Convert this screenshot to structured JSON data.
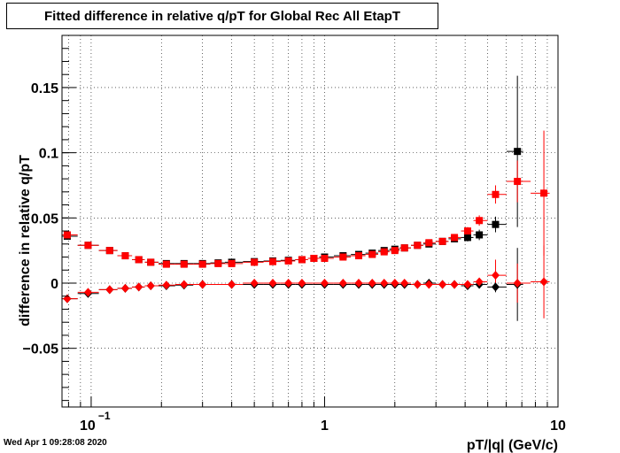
{
  "title": "Fitted difference in relative q/pT for Global Rec All EtapT",
  "timestamp": "Wed Apr  1 09:28:08 2020",
  "chart_data": {
    "type": "scatter",
    "title": "Fitted difference in relative q/pT for Global Rec All EtapT",
    "xlabel": "pT/|q| (GeV/c)",
    "ylabel": "difference in relative q/pT",
    "xscale": "log",
    "xlim": [
      0.075,
      10
    ],
    "ylim": [
      -0.095,
      0.19
    ],
    "x_ticks": [
      {
        "value": 0.1,
        "label": "10",
        "sup": "−1"
      },
      {
        "value": 1,
        "label": "1"
      },
      {
        "value": 10,
        "label": "10"
      }
    ],
    "y_ticks": [
      {
        "value": -0.05,
        "label": "−0.05"
      },
      {
        "value": 0,
        "label": "0"
      },
      {
        "value": 0.05,
        "label": "0.05"
      },
      {
        "value": 0.1,
        "label": "0.1"
      },
      {
        "value": 0.15,
        "label": "0.15"
      }
    ],
    "grid": true,
    "colors": {
      "black": "#000000",
      "red": "#ff0000"
    },
    "series": [
      {
        "color": "#000000",
        "marker": "square",
        "points": [
          [
            0.079,
            0.036
          ],
          [
            0.097,
            0.029
          ],
          [
            0.12,
            0.025
          ],
          [
            0.14,
            0.021
          ],
          [
            0.16,
            0.018
          ],
          [
            0.18,
            0.016
          ],
          [
            0.21,
            0.015
          ],
          [
            0.25,
            0.015
          ],
          [
            0.3,
            0.015
          ],
          [
            0.35,
            0.0155
          ],
          [
            0.4,
            0.016
          ],
          [
            0.5,
            0.0165
          ],
          [
            0.6,
            0.017
          ],
          [
            0.7,
            0.0175
          ],
          [
            0.8,
            0.018
          ],
          [
            0.9,
            0.019
          ],
          [
            1.0,
            0.02
          ],
          [
            1.2,
            0.021
          ],
          [
            1.4,
            0.022
          ],
          [
            1.6,
            0.023
          ],
          [
            1.8,
            0.025
          ],
          [
            2.0,
            0.026
          ],
          [
            2.2,
            0.027
          ],
          [
            2.5,
            0.029
          ],
          [
            2.8,
            0.03
          ],
          [
            3.2,
            0.032
          ],
          [
            3.6,
            0.034
          ],
          [
            4.1,
            0.035
          ],
          [
            4.6,
            0.037
          ],
          [
            5.4,
            0.045
          ],
          [
            6.7,
            0.101
          ]
        ],
        "errors": [
          0,
          0,
          0,
          0,
          0,
          0,
          0,
          0,
          0,
          0,
          0,
          0,
          0,
          0,
          0,
          0,
          0,
          0,
          0,
          0,
          0,
          0,
          0,
          0,
          0,
          0.001,
          0.002,
          0.003,
          0.004,
          0.006,
          0.058
        ]
      },
      {
        "color": "#ff0000",
        "marker": "square",
        "points": [
          [
            0.079,
            0.037
          ],
          [
            0.097,
            0.029
          ],
          [
            0.12,
            0.025
          ],
          [
            0.14,
            0.021
          ],
          [
            0.16,
            0.018
          ],
          [
            0.18,
            0.016
          ],
          [
            0.21,
            0.0145
          ],
          [
            0.25,
            0.0145
          ],
          [
            0.3,
            0.0145
          ],
          [
            0.35,
            0.015
          ],
          [
            0.4,
            0.015
          ],
          [
            0.5,
            0.016
          ],
          [
            0.6,
            0.0165
          ],
          [
            0.7,
            0.017
          ],
          [
            0.8,
            0.018
          ],
          [
            0.9,
            0.019
          ],
          [
            1.0,
            0.019
          ],
          [
            1.2,
            0.02
          ],
          [
            1.4,
            0.021
          ],
          [
            1.6,
            0.022
          ],
          [
            1.8,
            0.024
          ],
          [
            2.0,
            0.025
          ],
          [
            2.2,
            0.027
          ],
          [
            2.5,
            0.029
          ],
          [
            2.8,
            0.031
          ],
          [
            3.2,
            0.032
          ],
          [
            3.6,
            0.035
          ],
          [
            4.1,
            0.04
          ],
          [
            4.6,
            0.048
          ],
          [
            5.4,
            0.068
          ],
          [
            6.7,
            0.078
          ],
          [
            8.7,
            0.069
          ]
        ],
        "errors": [
          0,
          0,
          0,
          0,
          0,
          0,
          0,
          0,
          0,
          0,
          0,
          0,
          0,
          0,
          0,
          0,
          0,
          0,
          0,
          0,
          0,
          0,
          0,
          0,
          0,
          0.001,
          0.002,
          0.003,
          0.004,
          0.007,
          0.016,
          0.048
        ]
      },
      {
        "color": "#000000",
        "marker": "diamond",
        "points": [
          [
            0.079,
            -0.012
          ],
          [
            0.097,
            -0.008
          ],
          [
            0.12,
            -0.005
          ],
          [
            0.14,
            -0.004
          ],
          [
            0.16,
            -0.003
          ],
          [
            0.18,
            -0.002
          ],
          [
            0.21,
            -0.002
          ],
          [
            0.25,
            -0.0015
          ],
          [
            0.3,
            -0.001
          ],
          [
            0.4,
            -0.001
          ],
          [
            0.5,
            -0.001
          ],
          [
            0.6,
            -0.001
          ],
          [
            0.7,
            -0.001
          ],
          [
            0.8,
            -0.001
          ],
          [
            1.0,
            -0.001
          ],
          [
            1.2,
            -0.001
          ],
          [
            1.4,
            -0.001
          ],
          [
            1.6,
            -0.001
          ],
          [
            1.8,
            -0.001
          ],
          [
            2.0,
            -0.001
          ],
          [
            2.2,
            -0.001
          ],
          [
            2.5,
            -0.001
          ],
          [
            2.8,
            0.0
          ],
          [
            3.2,
            -0.001
          ],
          [
            3.6,
            -0.001
          ],
          [
            4.1,
            -0.002
          ],
          [
            4.6,
            -0.001
          ],
          [
            5.4,
            -0.003
          ],
          [
            6.7,
            -0.001
          ]
        ],
        "errors": [
          0,
          0,
          0,
          0,
          0,
          0,
          0,
          0,
          0,
          0,
          0,
          0,
          0,
          0,
          0,
          0,
          0,
          0,
          0,
          0,
          0,
          0,
          0,
          0,
          0,
          0.001,
          0.002,
          0.004,
          0.028
        ]
      },
      {
        "color": "#ff0000",
        "marker": "diamond",
        "points": [
          [
            0.079,
            -0.012
          ],
          [
            0.097,
            -0.007
          ],
          [
            0.12,
            -0.005
          ],
          [
            0.14,
            -0.004
          ],
          [
            0.16,
            -0.003
          ],
          [
            0.18,
            -0.002
          ],
          [
            0.21,
            -0.0015
          ],
          [
            0.25,
            -0.001
          ],
          [
            0.3,
            -0.001
          ],
          [
            0.4,
            -0.001
          ],
          [
            0.5,
            0.0
          ],
          [
            0.6,
            0.0
          ],
          [
            0.7,
            0.0
          ],
          [
            0.8,
            0.0
          ],
          [
            1.0,
            0.0
          ],
          [
            1.2,
            0.0
          ],
          [
            1.4,
            0.0
          ],
          [
            1.6,
            0.0
          ],
          [
            1.8,
            0.0
          ],
          [
            2.0,
            0.0
          ],
          [
            2.2,
            0.0
          ],
          [
            2.5,
            -0.001
          ],
          [
            2.8,
            -0.001
          ],
          [
            3.2,
            -0.001
          ],
          [
            3.6,
            -0.001
          ],
          [
            4.1,
            -0.001
          ],
          [
            4.6,
            0.001
          ],
          [
            5.4,
            0.006
          ],
          [
            6.7,
            0.0
          ],
          [
            8.7,
            0.001
          ]
        ],
        "errors": [
          0,
          0,
          0,
          0,
          0,
          0,
          0,
          0,
          0,
          0,
          0,
          0,
          0,
          0,
          0,
          0,
          0,
          0,
          0,
          0,
          0,
          0,
          0,
          0,
          0,
          0,
          0.002,
          0.012,
          0.015,
          0.028
        ]
      }
    ]
  }
}
